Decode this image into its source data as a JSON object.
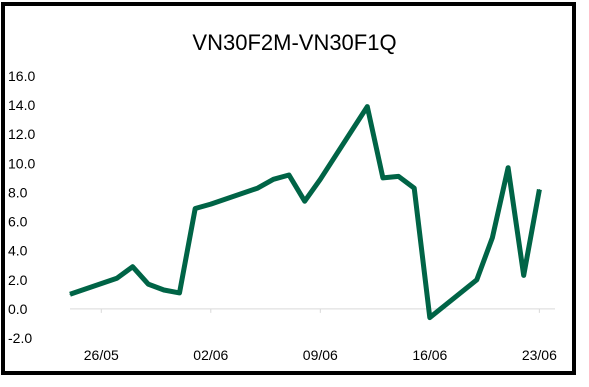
{
  "chart_data": {
    "type": "line",
    "title": "VN30F2M-VN30F1Q",
    "xlabel": "",
    "ylabel": "",
    "ylim": [
      -2.0,
      16.0
    ],
    "yticks": [
      "-2.0",
      "0.0",
      "2.0",
      "4.0",
      "6.0",
      "8.0",
      "10.0",
      "12.0",
      "14.0",
      "16.0"
    ],
    "ytick_values": [
      -2,
      0,
      2,
      4,
      6,
      8,
      10,
      12,
      14,
      16
    ],
    "xlim": [
      "2023-05-24",
      "2023-06-24"
    ],
    "xticks": [
      "26/05",
      "02/06",
      "09/06",
      "16/06",
      "23/06"
    ],
    "xtick_dates": [
      "2023-05-26",
      "2023-06-02",
      "2023-06-09",
      "2023-06-16",
      "2023-06-23"
    ],
    "grid": false,
    "legend": "none",
    "line_color": "#006446",
    "series": [
      {
        "x": [
          "2023-05-24",
          "2023-05-27",
          "2023-05-28",
          "2023-05-29",
          "2023-05-30",
          "2023-05-31",
          "2023-06-01",
          "2023-06-02",
          "2023-06-05",
          "2023-06-06",
          "2023-06-07",
          "2023-06-08",
          "2023-06-09",
          "2023-06-12",
          "2023-06-13",
          "2023-06-14",
          "2023-06-15",
          "2023-06-16",
          "2023-06-19",
          "2023-06-20",
          "2023-06-21",
          "2023-06-22",
          "2023-06-23"
        ],
        "values": [
          1.0,
          2.1,
          2.9,
          1.7,
          1.3,
          1.1,
          6.9,
          7.2,
          8.3,
          8.9,
          9.2,
          7.4,
          8.9,
          13.9,
          9.0,
          9.1,
          8.3,
          -0.6,
          2.0,
          4.9,
          9.7,
          2.3,
          8.2
        ]
      }
    ]
  }
}
